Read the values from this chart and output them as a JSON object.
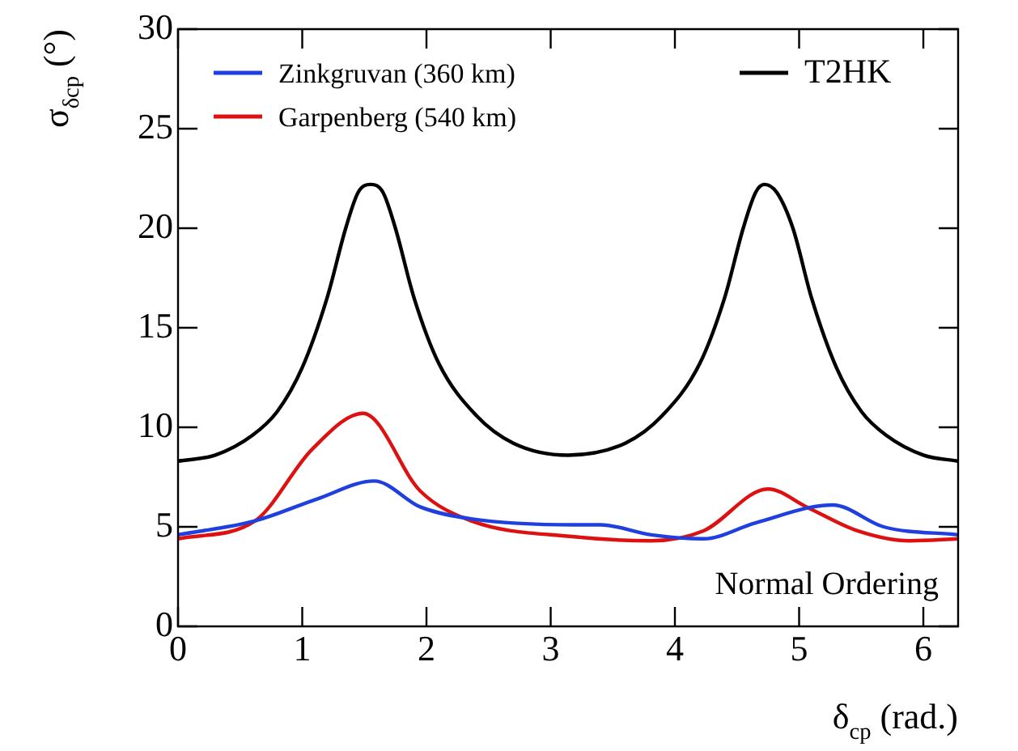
{
  "chart_data": {
    "type": "line",
    "xlabel": "δ$_{cp}$ (rad.)",
    "ylabel": "σ$_{δcp}$ (°)",
    "xlim": [
      0,
      6.28
    ],
    "ylim": [
      0,
      30
    ],
    "xticks": [
      0,
      1,
      2,
      3,
      4,
      5,
      6
    ],
    "yticks": [
      0,
      5,
      10,
      15,
      20,
      25,
      30
    ],
    "grid": false,
    "legend": "top",
    "marker": "none",
    "line_style": "solid",
    "annotations": [
      {
        "text": "Normal Ordering"
      }
    ],
    "series": [
      {
        "name": "Zinkgruvan (360 km)",
        "color": "#1f3fdf",
        "x": [
          0,
          0.62,
          1.12,
          1.58,
          1.95,
          2.36,
          3.19,
          3.4,
          3.81,
          4.23,
          4.65,
          5.27,
          5.68,
          6.28
        ],
        "values": [
          4.6,
          5.3,
          6.4,
          7.3,
          6.0,
          5.4,
          5.1,
          5.1,
          4.6,
          4.4,
          5.2,
          6.1,
          5.0,
          4.6
        ]
      },
      {
        "name": "Garpenberg (540 km)",
        "color": "#dd1111",
        "x": [
          0,
          0.62,
          1.08,
          1.49,
          1.95,
          2.36,
          3.19,
          3.81,
          4.23,
          4.75,
          5.06,
          5.47,
          5.89,
          6.28
        ],
        "values": [
          4.4,
          5.3,
          8.9,
          10.7,
          6.8,
          5.3,
          4.5,
          4.3,
          4.8,
          6.9,
          6.0,
          4.8,
          4.3,
          4.4
        ]
      },
      {
        "name": "T2HK",
        "color": "#000000",
        "x": [
          0,
          0.3,
          0.6,
          0.8,
          1.0,
          1.2,
          1.35,
          1.45,
          1.55,
          1.65,
          1.75,
          1.9,
          2.1,
          2.4,
          2.7,
          3.14,
          3.6,
          3.9,
          4.2,
          4.4,
          4.55,
          4.65,
          4.72,
          4.82,
          4.95,
          5.1,
          5.3,
          5.5,
          5.7,
          6.0,
          6.28
        ],
        "values": [
          8.3,
          8.6,
          9.6,
          10.8,
          13,
          16.5,
          20,
          21.8,
          22.2,
          21.8,
          20,
          16.5,
          13.2,
          10.6,
          9.2,
          8.6,
          9.2,
          10.6,
          13.2,
          16.5,
          20,
          21.8,
          22.2,
          21.8,
          20,
          16.5,
          13,
          10.8,
          9.6,
          8.6,
          8.3
        ]
      }
    ]
  }
}
